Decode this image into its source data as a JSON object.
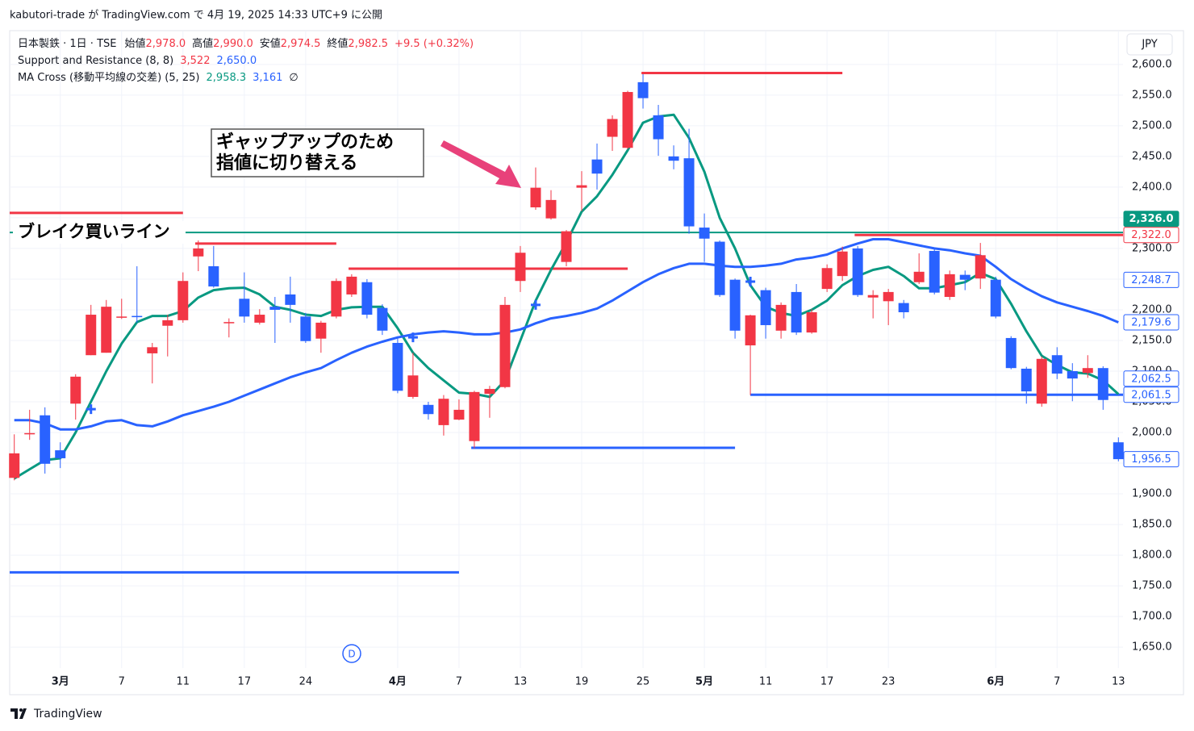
{
  "header": {
    "publisher": "kabutori-trade が TradingView.com で 4月 19, 2025 14:33 UTC+9 に公開"
  },
  "legend": {
    "symbol": "日本製鉄 · 1日 · TSE",
    "ohlc": [
      {
        "label": "始値",
        "value": "2,978.0"
      },
      {
        "label": "高値",
        "value": "2,990.0"
      },
      {
        "label": "安値",
        "value": "2,974.5"
      },
      {
        "label": "終値",
        "value": "2,982.5"
      }
    ],
    "change": "+9.5 (+0.32%)",
    "value_color": "#f23645",
    "indicators": [
      {
        "name": "Support and Resistance (8, 8)",
        "values": [
          {
            "text": "3,522",
            "color": "#f23645"
          },
          {
            "text": "2,650.0",
            "color": "#2962ff"
          }
        ]
      },
      {
        "name": "MA Cross (移動平均線の交差) (5, 25)",
        "values": [
          {
            "text": "2,958.3",
            "color": "#089981"
          },
          {
            "text": "3,161",
            "color": "#2962ff"
          },
          {
            "text": "∅",
            "color": "#131722"
          }
        ]
      }
    ]
  },
  "chart_data": {
    "type": "candlestick",
    "currency": "JPY",
    "event_marker": "D",
    "up_color": "#f23645",
    "down_color": "#2962ff",
    "grid": true,
    "categories": [
      null,
      null,
      null,
      "3月",
      null,
      null,
      null,
      "7",
      null,
      null,
      null,
      "11",
      null,
      null,
      null,
      "17",
      null,
      null,
      null,
      "24",
      null,
      null,
      null,
      null,
      null,
      "4月",
      null,
      null,
      null,
      "7",
      null,
      null,
      null,
      "13",
      null,
      null,
      null,
      "19",
      null,
      null,
      null,
      "25",
      null,
      null,
      null,
      "5月",
      null,
      null,
      null,
      "11",
      null,
      null,
      null,
      "17",
      null,
      null,
      null,
      "23",
      null,
      null,
      null,
      null,
      null,
      null,
      "6月",
      null,
      null,
      null,
      "7",
      null,
      null,
      null,
      "13"
    ],
    "open": [
      1926,
      1997,
      2028,
      1971,
      2047,
      2126,
      2130,
      2187,
      2190,
      2129,
      2174,
      2183,
      2287,
      2271,
      2178,
      2218,
      2179,
      2205,
      2225,
      2189,
      2153,
      2189,
      2225,
      2245,
      2203,
      2146,
      2058,
      2045,
      2012,
      2021,
      1986,
      2063,
      2074,
      2247,
      2367,
      2349,
      2278,
      2399,
      2445,
      2482,
      2464,
      2571,
      2517,
      2450,
      2447,
      2334,
      2311,
      2249,
      2142,
      2232,
      2166,
      2229,
      2163,
      2234,
      2255,
      2300,
      2220,
      2214,
      2211,
      2245,
      2296,
      2221,
      2257,
      2251,
      2249,
      2154,
      2104,
      2047,
      2126,
      2100,
      2097,
      2105,
      1984
    ],
    "high": [
      1997,
      2037,
      2041,
      1984,
      2095,
      2208,
      2216,
      2218,
      2271,
      2146,
      2192,
      2261,
      2313,
      2304,
      2186,
      2261,
      2201,
      2221,
      2254,
      2195,
      2182,
      2251,
      2258,
      2250,
      2209,
      2153,
      2130,
      2050,
      2061,
      2054,
      2068,
      2076,
      2221,
      2304,
      2432,
      2395,
      2330,
      2426,
      2471,
      2517,
      2557,
      2584,
      2534,
      2468,
      2495,
      2357,
      2313,
      2251,
      2192,
      2236,
      2212,
      2242,
      2201,
      2274,
      2303,
      2304,
      2232,
      2234,
      2216,
      2292,
      2299,
      2264,
      2264,
      2309,
      2254,
      2157,
      2107,
      2124,
      2139,
      2113,
      2126,
      2108,
      1992
    ],
    "low": [
      1922,
      1988,
      1933,
      1942,
      2021,
      2126,
      2130,
      2185,
      2179,
      2080,
      2124,
      2179,
      2263,
      2236,
      2155,
      2179,
      2176,
      2146,
      2179,
      2146,
      2130,
      2186,
      2221,
      2186,
      2159,
      2064,
      2055,
      2021,
      1995,
      2020,
      1974,
      2024,
      2072,
      2229,
      2363,
      2347,
      2271,
      2361,
      2396,
      2459,
      2462,
      2528,
      2451,
      2429,
      2324,
      2278,
      2221,
      2153,
      2061,
      2153,
      2153,
      2159,
      2161,
      2229,
      2247,
      2221,
      2186,
      2175,
      2186,
      2242,
      2225,
      2216,
      2232,
      2234,
      2186,
      2103,
      2047,
      2042,
      2087,
      2051,
      2089,
      2037,
      1953
    ],
    "close": [
      1966,
      1999,
      1949,
      1958,
      2091,
      2192,
      2205,
      2189,
      2188,
      2139,
      2183,
      2247,
      2300,
      2238,
      2180,
      2189,
      2192,
      2200,
      2208,
      2149,
      2179,
      2247,
      2254,
      2192,
      2166,
      2068,
      2093,
      2030,
      2055,
      2037,
      2066,
      2071,
      2208,
      2293,
      2399,
      2379,
      2328,
      2403,
      2422,
      2511,
      2555,
      2545,
      2478,
      2443,
      2336,
      2316,
      2224,
      2166,
      2191,
      2175,
      2208,
      2163,
      2196,
      2268,
      2295,
      2224,
      2224,
      2229,
      2196,
      2262,
      2228,
      2258,
      2249,
      2289,
      2189,
      2105,
      2067,
      2120,
      2096,
      2088,
      2105,
      2053,
      1956.5
    ],
    "lines": [
      {
        "color": "#089981",
        "values": [
          1925,
          1940,
          1955,
          1958,
          2000,
          2050,
          2100,
          2145,
          2180,
          2190,
          2190,
          2198,
          2220,
          2232,
          2235,
          2236,
          2225,
          2205,
          2200,
          2192,
          2190,
          2200,
          2204,
          2205,
          2205,
          2170,
          2130,
          2105,
          2085,
          2065,
          2063,
          2058,
          2085,
          2150,
          2215,
          2265,
          2310,
          2360,
          2385,
          2420,
          2460,
          2505,
          2515,
          2518,
          2480,
          2425,
          2350,
          2300,
          2240,
          2205,
          2195,
          2190,
          2200,
          2215,
          2240,
          2255,
          2265,
          2270,
          2255,
          2235,
          2235,
          2240,
          2245,
          2260,
          2250,
          2210,
          2165,
          2125,
          2110,
          2098,
          2096,
          2085,
          2062.5
        ]
      },
      {
        "color": "#2962ff",
        "values": [
          2020,
          2020,
          2015,
          2005,
          2005,
          2010,
          2018,
          2020,
          2012,
          2010,
          2018,
          2028,
          2035,
          2042,
          2050,
          2060,
          2070,
          2080,
          2090,
          2098,
          2105,
          2118,
          2130,
          2140,
          2148,
          2155,
          2160,
          2163,
          2165,
          2163,
          2160,
          2160,
          2163,
          2168,
          2178,
          2186,
          2190,
          2195,
          2202,
          2215,
          2230,
          2245,
          2258,
          2268,
          2275,
          2275,
          2272,
          2270,
          2270,
          2272,
          2275,
          2282,
          2285,
          2290,
          2300,
          2308,
          2315,
          2315,
          2310,
          2305,
          2300,
          2297,
          2292,
          2288,
          2270,
          2250,
          2235,
          2222,
          2212,
          2205,
          2198,
          2190,
          2179.6
        ]
      }
    ],
    "cross_markers": {
      "color": "#2962ff",
      "values": [
        null,
        null,
        null,
        null,
        null,
        2038,
        null,
        null,
        null,
        null,
        null,
        null,
        null,
        null,
        null,
        null,
        null,
        null,
        null,
        null,
        null,
        null,
        null,
        null,
        null,
        null,
        2155,
        null,
        null,
        null,
        null,
        null,
        null,
        null,
        2208,
        null,
        null,
        null,
        null,
        null,
        null,
        null,
        null,
        null,
        null,
        null,
        null,
        null,
        2246,
        null,
        null,
        null,
        null,
        null,
        null,
        null,
        null,
        null,
        null,
        null,
        null,
        null,
        null,
        null,
        null,
        null,
        null,
        null,
        null,
        null,
        null,
        null,
        null
      ]
    },
    "levels": [
      {
        "value": 2358,
        "color": "#f23645"
      },
      {
        "value": 2308,
        "color": "#f23645"
      },
      {
        "value": 2267,
        "color": "#f23645"
      },
      {
        "value": 2586,
        "color": "#f23645"
      },
      {
        "value": 2322,
        "color": "#f23645"
      },
      {
        "value": 1772,
        "color": "#2962ff"
      },
      {
        "value": 1975,
        "color": "#2962ff"
      },
      {
        "value": 2061.5,
        "color": "#2962ff"
      },
      {
        "value": 2326,
        "color": "#089981"
      }
    ],
    "price_labels": [
      {
        "value": 2326,
        "label": "2,326.0",
        "color": "#089981",
        "filled": true
      },
      {
        "value": 2322,
        "label": "2,322.0",
        "color": "#f23645",
        "filled": false
      },
      {
        "value": 2248.7,
        "label": "2,248.7",
        "color": "#2962ff",
        "filled": false
      },
      {
        "value": 2179.6,
        "label": "2,179.6",
        "color": "#2962ff",
        "filled": false
      },
      {
        "value": 2062.5,
        "label": "2,062.5",
        "color": "#2962ff",
        "filled": false
      },
      {
        "value": 2061.5,
        "label": "2,061.5",
        "color": "#2962ff",
        "filled": false
      },
      {
        "value": 1956.5,
        "label": "1,956.5",
        "color": "#2962ff",
        "filled": false
      }
    ],
    "annotations": {
      "callout": [
        "ギャップアップのため",
        "指値に切り替える"
      ],
      "break_line_label": "ブレイク買いライン"
    },
    "ylim": [
      1616,
      2655
    ],
    "yticks": [
      {
        "value": 1650,
        "label": "1,650.0"
      },
      {
        "value": 1700,
        "label": "1,700.0"
      },
      {
        "value": 1750,
        "label": "1,750.0"
      },
      {
        "value": 1800,
        "label": "1,800.0"
      },
      {
        "value": 1850,
        "label": "1,850.0"
      },
      {
        "value": 1900,
        "label": "1,900.0"
      },
      {
        "value": 1950,
        "label": "1,950.0"
      },
      {
        "value": 2000,
        "label": "2,000.0"
      },
      {
        "value": 2050,
        "label": "2,050.0"
      },
      {
        "value": 2100,
        "label": "2,100.0"
      },
      {
        "value": 2150,
        "label": "2,150.0"
      },
      {
        "value": 2200,
        "label": "2,200.0"
      },
      {
        "value": 2250,
        "label": "2,250.0"
      },
      {
        "value": 2300,
        "label": "2,300.0"
      },
      {
        "value": 2350,
        "label": "2,350.0"
      },
      {
        "value": 2400,
        "label": "2,400.0"
      },
      {
        "value": 2450,
        "label": "2,450.0"
      },
      {
        "value": 2500,
        "label": "2,500.0"
      },
      {
        "value": 2550,
        "label": "2,550.0"
      },
      {
        "value": 2600,
        "label": "2,600.0"
      }
    ]
  },
  "footer": {
    "brand": "TradingView"
  }
}
